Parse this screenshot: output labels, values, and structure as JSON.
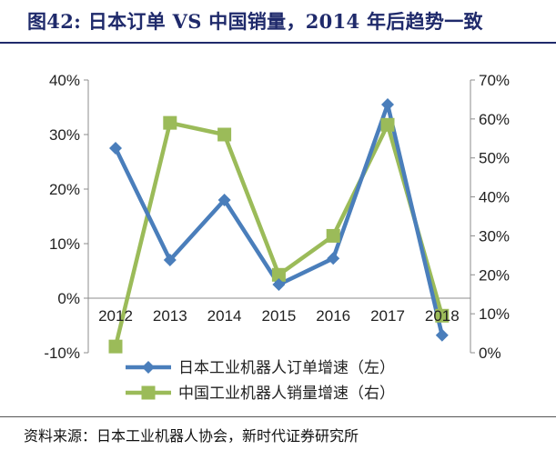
{
  "header": {
    "title": "图42:   日本订单 VS 中国销量，2014 年后趋势一致"
  },
  "footer": {
    "source": "资料来源：日本工业机器人协会，新时代证券研究所"
  },
  "chart_data": {
    "type": "line",
    "categories": [
      "2012",
      "2013",
      "2014",
      "2015",
      "2016",
      "2017",
      "2018"
    ],
    "series": [
      {
        "name": "日本工业机器人订单增速（左）",
        "axis": "left",
        "color": "#4a7ebb",
        "marker": "diamond",
        "values": [
          27.5,
          7,
          18,
          2.5,
          7.3,
          35.5,
          -6.8
        ]
      },
      {
        "name": "中国工业机器人销量增速（右）",
        "axis": "right",
        "color": "#9bbb59",
        "marker": "square",
        "values": [
          1.6,
          59,
          56,
          20,
          30,
          58.5,
          9.5
        ]
      }
    ],
    "y_left": {
      "ylim": [
        -10,
        40
      ],
      "ticks": [
        -10,
        0,
        10,
        20,
        30,
        40
      ],
      "unit": "%"
    },
    "y_right": {
      "ylim": [
        0,
        70
      ],
      "ticks": [
        0,
        10,
        20,
        30,
        40,
        50,
        60,
        70
      ],
      "unit": "%"
    },
    "grid": false,
    "legend": "bottom-center"
  }
}
